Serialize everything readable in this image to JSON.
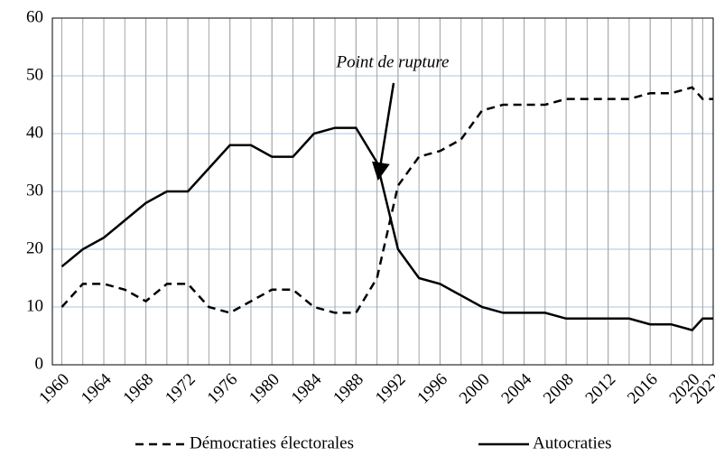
{
  "chart_data": {
    "type": "line",
    "annotation": "Point de rupture",
    "x": [
      1960,
      1962,
      1964,
      1966,
      1968,
      1970,
      1972,
      1974,
      1976,
      1978,
      1980,
      1982,
      1984,
      1986,
      1988,
      1990,
      1992,
      1994,
      1996,
      1998,
      2000,
      2002,
      2004,
      2006,
      2008,
      2010,
      2012,
      2014,
      2016,
      2018,
      2020,
      2021,
      2022
    ],
    "series": [
      {
        "name": "Démocraties électorales",
        "color": "#000000",
        "dash": true,
        "values": [
          10,
          14,
          14,
          13,
          11,
          14,
          14,
          10,
          9,
          11,
          13,
          13,
          10,
          9,
          9,
          15,
          31,
          36,
          37,
          39,
          44,
          45,
          45,
          45,
          46,
          46,
          46,
          46,
          47,
          47,
          48,
          46,
          46
        ]
      },
      {
        "name": "Autocraties",
        "color": "#000000",
        "dash": false,
        "values": [
          17,
          20,
          22,
          25,
          28,
          30,
          30,
          34,
          38,
          38,
          36,
          36,
          40,
          41,
          41,
          35,
          20,
          15,
          14,
          12,
          10,
          9,
          9,
          9,
          8,
          8,
          8,
          8,
          7,
          7,
          6,
          8,
          8
        ]
      }
    ],
    "xlim": [
      1959.1,
      2022
    ],
    "xticks": [
      1960,
      1964,
      1968,
      1972,
      1976,
      1980,
      1984,
      1988,
      1992,
      1996,
      2000,
      2004,
      2008,
      2012,
      2016,
      2020,
      2022
    ],
    "ylim": [
      0,
      60
    ],
    "yticks": [
      0,
      10,
      20,
      30,
      40,
      50,
      60
    ],
    "grid": true,
    "legend": "bottom"
  }
}
